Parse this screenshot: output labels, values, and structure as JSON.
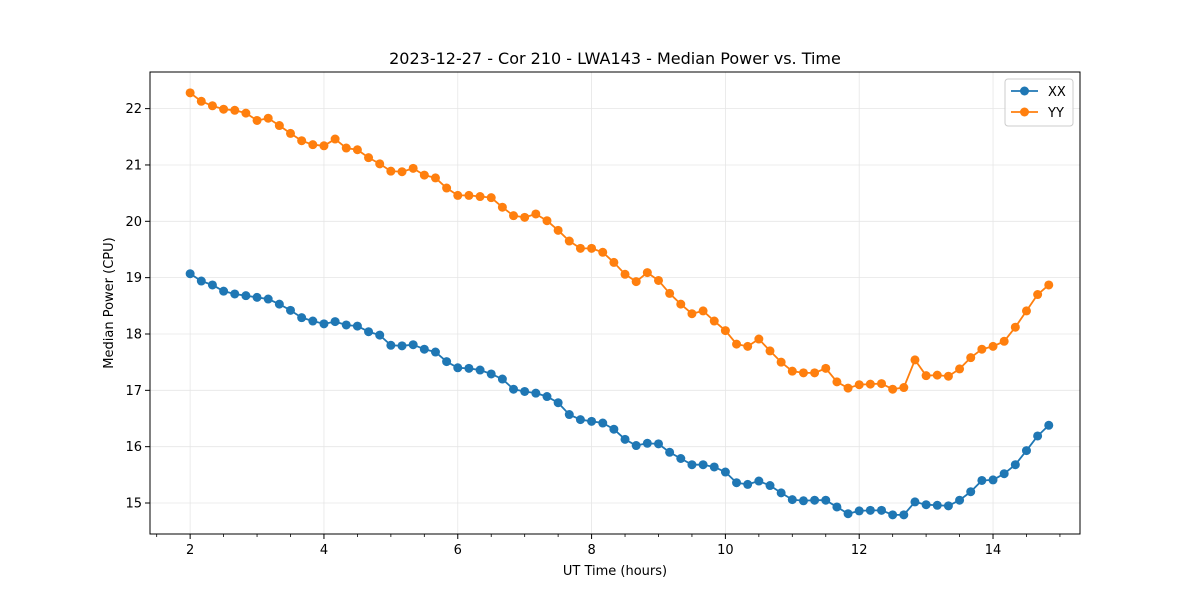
{
  "chart_data": {
    "type": "line",
    "title": "2023-12-27 - Cor 210 - LWA143 - Median Power vs. Time",
    "xlabel": "UT Time (hours)",
    "ylabel": "Median Power (CPU)",
    "xlim": [
      1.4,
      15.3
    ],
    "ylim": [
      14.45,
      22.65
    ],
    "xticks": [
      2,
      4,
      6,
      8,
      10,
      12,
      14
    ],
    "xtick_labels": [
      "2",
      "4",
      "6",
      "8",
      "10",
      "12",
      "14"
    ],
    "yticks": [
      15,
      16,
      17,
      18,
      19,
      20,
      21,
      22
    ],
    "ytick_labels": [
      "15",
      "16",
      "17",
      "18",
      "19",
      "20",
      "21",
      "22"
    ],
    "grid": true,
    "legend_position": "top-right",
    "x": [
      2.0,
      2.1667,
      2.3333,
      2.5,
      2.6667,
      2.8333,
      3.0,
      3.1667,
      3.3333,
      3.5,
      3.6667,
      3.8333,
      4.0,
      4.1667,
      4.3333,
      4.5,
      4.6667,
      4.8333,
      5.0,
      5.1667,
      5.3333,
      5.5,
      5.6667,
      5.8333,
      6.0,
      6.1667,
      6.3333,
      6.5,
      6.6667,
      6.8333,
      7.0,
      7.1667,
      7.3333,
      7.5,
      7.6667,
      7.8333,
      8.0,
      8.1667,
      8.3333,
      8.5,
      8.6667,
      8.8333,
      9.0,
      9.1667,
      9.3333,
      9.5,
      9.6667,
      9.8333,
      10.0,
      10.1667,
      10.3333,
      10.5,
      10.6667,
      10.8333,
      11.0,
      11.1667,
      11.3333,
      11.5,
      11.6667,
      11.8333,
      12.0,
      12.1667,
      12.3333,
      12.5,
      12.6667,
      12.8333,
      13.0,
      13.1667,
      13.3333,
      13.5,
      13.6667,
      13.8333,
      14.0,
      14.1667,
      14.3333,
      14.5,
      14.6667,
      14.8333
    ],
    "series": [
      {
        "name": "XX",
        "color": "#1f77b4",
        "values": [
          19.07,
          18.94,
          18.87,
          18.76,
          18.71,
          18.68,
          18.65,
          18.62,
          18.53,
          18.42,
          18.29,
          18.23,
          18.18,
          18.22,
          18.16,
          18.14,
          18.04,
          17.98,
          17.8,
          17.79,
          17.81,
          17.73,
          17.68,
          17.51,
          17.4,
          17.39,
          17.36,
          17.29,
          17.2,
          17.02,
          16.98,
          16.95,
          16.89,
          16.78,
          16.57,
          16.48,
          16.45,
          16.42,
          16.31,
          16.13,
          16.02,
          16.06,
          16.05,
          15.9,
          15.79,
          15.68,
          15.68,
          15.64,
          15.55,
          15.36,
          15.33,
          15.39,
          15.31,
          15.18,
          15.06,
          15.04,
          15.05,
          15.05,
          14.93,
          14.81,
          14.86,
          14.87,
          14.87,
          14.79,
          14.79,
          15.02,
          14.97,
          14.96,
          14.95,
          15.05,
          15.2,
          15.4,
          15.41,
          15.52,
          15.68,
          15.93,
          16.19,
          16.38
        ]
      },
      {
        "name": "YY",
        "color": "#ff7f0e",
        "values": [
          22.28,
          22.13,
          22.05,
          21.99,
          21.97,
          21.92,
          21.79,
          21.83,
          21.7,
          21.56,
          21.43,
          21.36,
          21.34,
          21.46,
          21.3,
          21.27,
          21.13,
          21.02,
          20.89,
          20.88,
          20.94,
          20.82,
          20.77,
          20.59,
          20.46,
          20.46,
          20.44,
          20.42,
          20.25,
          20.1,
          20.07,
          20.13,
          20.01,
          19.84,
          19.65,
          19.52,
          19.52,
          19.45,
          19.27,
          19.06,
          18.93,
          19.09,
          18.95,
          18.72,
          18.53,
          18.36,
          18.41,
          18.23,
          18.06,
          17.82,
          17.78,
          17.91,
          17.7,
          17.5,
          17.34,
          17.31,
          17.31,
          17.39,
          17.15,
          17.04,
          17.1,
          17.11,
          17.12,
          17.02,
          17.05,
          17.54,
          17.26,
          17.27,
          17.25,
          17.38,
          17.58,
          17.73,
          17.78,
          17.87,
          18.12,
          18.41,
          18.7,
          18.87
        ]
      }
    ]
  }
}
